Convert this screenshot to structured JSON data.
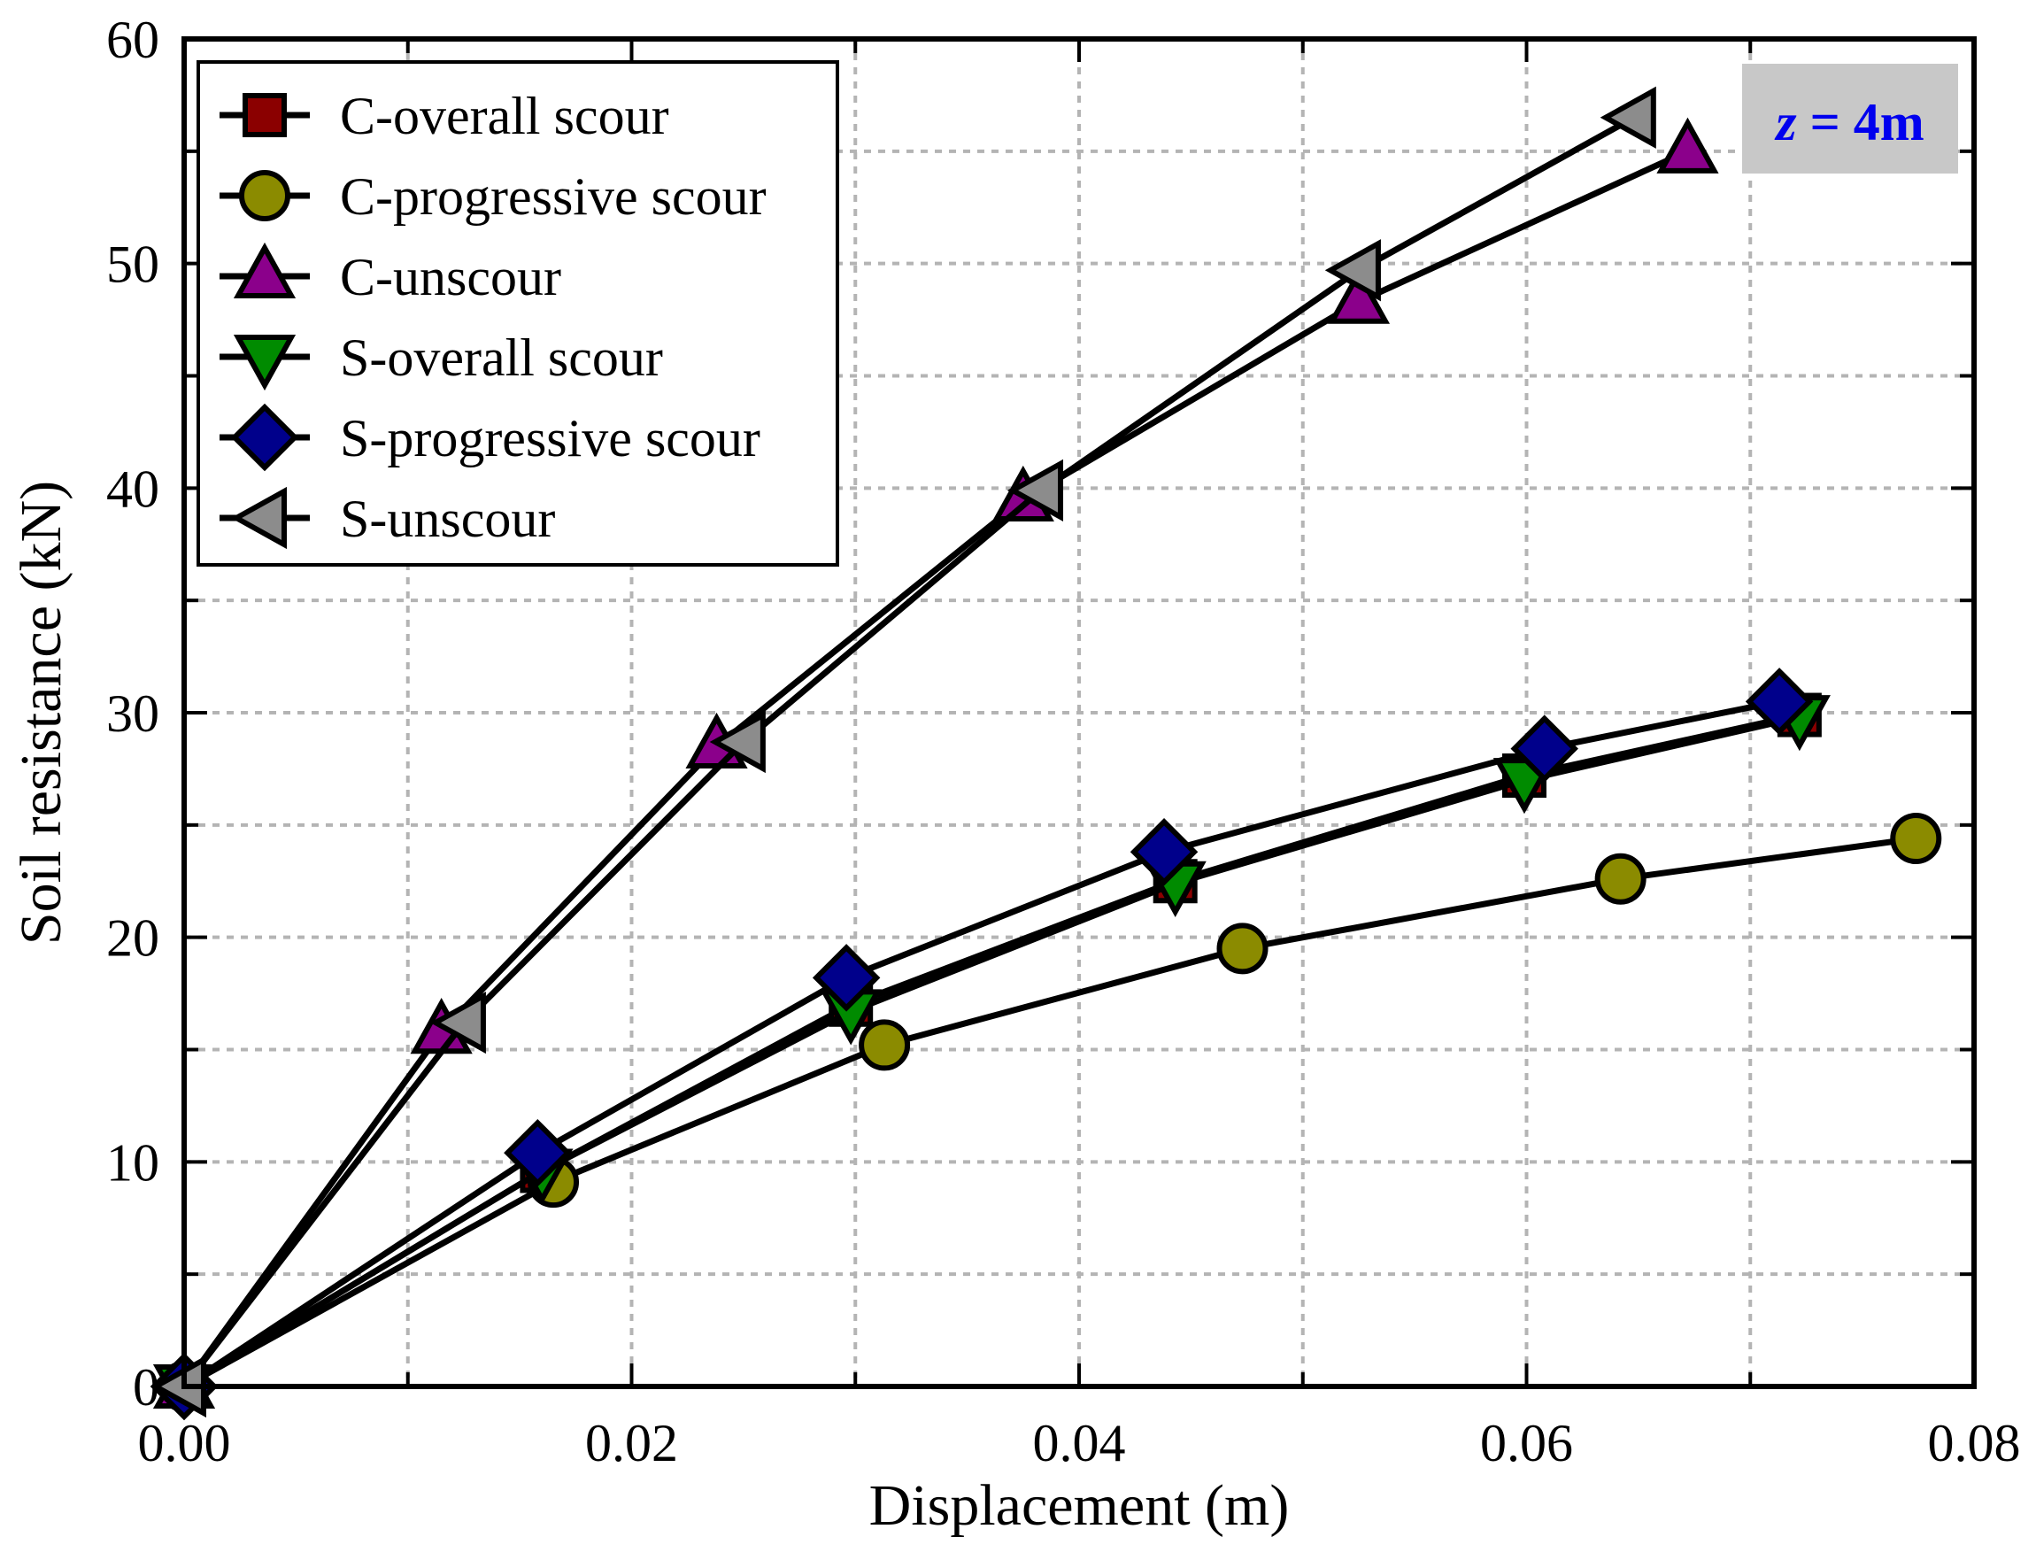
{
  "chart_data": {
    "type": "line",
    "title": "",
    "xlabel": "Displacement (m)",
    "ylabel": "Soil resistance (kN)",
    "xlim": [
      0,
      0.08
    ],
    "ylim": [
      0,
      60
    ],
    "grid": true,
    "legend_position": "top-left",
    "annotation": {
      "var": "z",
      "rest": " = 4m",
      "color": "#0000ee",
      "background": "#c8c8c8"
    },
    "x_ticks": [
      {
        "value": 0.0,
        "label": "0.00"
      },
      {
        "value": 0.02,
        "label": "0.02"
      },
      {
        "value": 0.04,
        "label": "0.04"
      },
      {
        "value": 0.06,
        "label": "0.06"
      },
      {
        "value": 0.08,
        "label": "0.08"
      }
    ],
    "y_ticks": [
      {
        "value": 0,
        "label": "0"
      },
      {
        "value": 10,
        "label": "10"
      },
      {
        "value": 20,
        "label": "20"
      },
      {
        "value": 30,
        "label": "30"
      },
      {
        "value": 40,
        "label": "40"
      },
      {
        "value": 50,
        "label": "50"
      },
      {
        "value": 60,
        "label": "60"
      }
    ],
    "series": [
      {
        "name": "C-overall scour",
        "marker": "square",
        "color": "#8b0000",
        "points": [
          [
            0,
            0
          ],
          [
            0.016,
            9.6
          ],
          [
            0.0298,
            17.0
          ],
          [
            0.0443,
            22.5
          ],
          [
            0.0599,
            27.2
          ],
          [
            0.0722,
            29.9
          ]
        ]
      },
      {
        "name": "C-progressive scour",
        "marker": "circle",
        "color": "#8b8b00",
        "points": [
          [
            0,
            0
          ],
          [
            0.0165,
            9.1
          ],
          [
            0.0313,
            15.2
          ],
          [
            0.0473,
            19.5
          ],
          [
            0.0642,
            22.6
          ],
          [
            0.0774,
            24.4
          ]
        ]
      },
      {
        "name": "C-unscour",
        "marker": "triangle-up",
        "color": "#8b008b",
        "points": [
          [
            0,
            0
          ],
          [
            0.0115,
            15.8
          ],
          [
            0.0238,
            28.5
          ],
          [
            0.0375,
            39.5
          ],
          [
            0.0525,
            48.3
          ],
          [
            0.0672,
            55.0
          ]
        ]
      },
      {
        "name": "S-overall scour",
        "marker": "triangle-down",
        "color": "#008b00",
        "points": [
          [
            0,
            0
          ],
          [
            0.016,
            9.6
          ],
          [
            0.0298,
            16.7
          ],
          [
            0.0443,
            22.4
          ],
          [
            0.0599,
            27.0
          ],
          [
            0.0722,
            29.8
          ]
        ]
      },
      {
        "name": "S-progressive scour",
        "marker": "diamond",
        "color": "#00008b",
        "points": [
          [
            0,
            0
          ],
          [
            0.0158,
            10.4
          ],
          [
            0.0296,
            18.2
          ],
          [
            0.0438,
            23.8
          ],
          [
            0.0608,
            28.4
          ],
          [
            0.0713,
            30.5
          ]
        ]
      },
      {
        "name": "S-unscour",
        "marker": "triangle-left",
        "color": "#8c8c8c",
        "points": [
          [
            0,
            0
          ],
          [
            0.0125,
            16.2
          ],
          [
            0.025,
            28.7
          ],
          [
            0.0383,
            39.9
          ],
          [
            0.0525,
            49.7
          ],
          [
            0.0648,
            56.5
          ]
        ]
      }
    ]
  }
}
